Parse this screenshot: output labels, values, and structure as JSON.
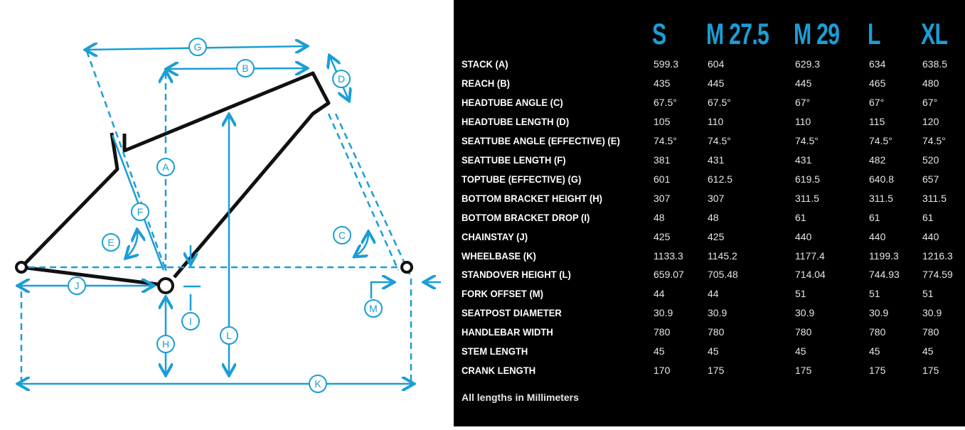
{
  "accent_color": "#1a9ed4",
  "diagram": {
    "labels": [
      "A",
      "B",
      "C",
      "D",
      "E",
      "F",
      "G",
      "H",
      "I",
      "J",
      "K",
      "L",
      "M"
    ]
  },
  "table": {
    "sizes": [
      "S",
      "M 27.5",
      "M 29",
      "L",
      "XL"
    ],
    "rows": [
      {
        "label": "STACK (A)",
        "values": [
          "599.3",
          "604",
          "629.3",
          "634",
          "638.5"
        ]
      },
      {
        "label": "REACH (B)",
        "values": [
          "435",
          "445",
          "445",
          "465",
          "480"
        ]
      },
      {
        "label": "HEADTUBE ANGLE (C)",
        "values": [
          "67.5°",
          "67.5°",
          "67°",
          "67°",
          "67°"
        ]
      },
      {
        "label": "HEADTUBE LENGTH (D)",
        "values": [
          "105",
          "110",
          "110",
          "115",
          "120"
        ]
      },
      {
        "label": "SEATTUBE ANGLE (EFFECTIVE) (E)",
        "values": [
          "74.5°",
          "74.5°",
          "74.5°",
          "74.5°",
          "74.5°"
        ]
      },
      {
        "label": "SEATTUBE LENGTH (F)",
        "values": [
          "381",
          "431",
          "431",
          "482",
          "520"
        ]
      },
      {
        "label": "TOPTUBE (EFFECTIVE) (G)",
        "values": [
          "601",
          "612.5",
          "619.5",
          "640.8",
          "657"
        ]
      },
      {
        "label": "BOTTOM BRACKET HEIGHT (H)",
        "values": [
          "307",
          "307",
          "311.5",
          "311.5",
          "311.5"
        ]
      },
      {
        "label": "BOTTOM BRACKET DROP (I)",
        "values": [
          "48",
          "48",
          "61",
          "61",
          "61"
        ]
      },
      {
        "label": "CHAINSTAY (J)",
        "values": [
          "425",
          "425",
          "440",
          "440",
          "440"
        ]
      },
      {
        "label": "WHEELBASE (K)",
        "values": [
          "1133.3",
          "1145.2",
          "1177.4",
          "1199.3",
          "1216.3"
        ]
      },
      {
        "label": "STANDOVER HEIGHT (L)",
        "values": [
          "659.07",
          "705.48",
          "714.04",
          "744.93",
          "774.59"
        ]
      },
      {
        "label": "FORK OFFSET (M)",
        "values": [
          "44",
          "44",
          "51",
          "51",
          "51"
        ]
      },
      {
        "label": "SEATPOST DIAMETER",
        "values": [
          "30.9",
          "30.9",
          "30.9",
          "30.9",
          "30.9"
        ]
      },
      {
        "label": "HANDLEBAR WIDTH",
        "values": [
          "780",
          "780",
          "780",
          "780",
          "780"
        ]
      },
      {
        "label": "STEM LENGTH",
        "values": [
          "45",
          "45",
          "45",
          "45",
          "45"
        ]
      },
      {
        "label": "CRANK LENGTH",
        "values": [
          "170",
          "175",
          "175",
          "175",
          "175"
        ]
      }
    ],
    "note": "All lengths in Millimeters"
  }
}
